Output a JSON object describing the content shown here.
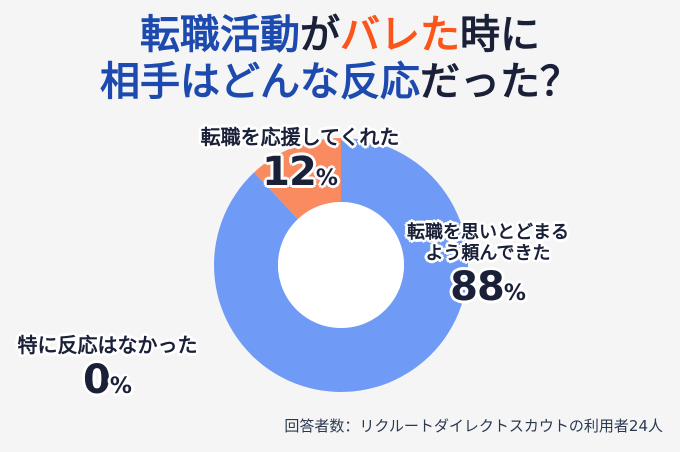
{
  "page": {
    "background": "#f5f5f6"
  },
  "title": {
    "line1": [
      {
        "text": "転職活動",
        "color": "#1d4aae"
      },
      {
        "text": "が",
        "color": "#1a2038"
      },
      {
        "text": "バレた",
        "color": "#fb551b"
      },
      {
        "text": "時に",
        "color": "#1a2038"
      }
    ],
    "line2": [
      {
        "text": "相手はどんな反応",
        "color": "#1d4aae"
      },
      {
        "text": "だった？",
        "color": "#1a2038"
      }
    ]
  },
  "chart_data": {
    "type": "pie",
    "subtype": "donut",
    "title": "転職活動がバレた時に相手はどんな反応だった？",
    "unit": "%",
    "start_angle_deg": 0,
    "direction": "clockwise",
    "segments": [
      {
        "label": "転職を思いとどまるよう頼んできた",
        "value": 88,
        "color": "#6f9bf6"
      },
      {
        "label": "転職を応援してくれた",
        "value": 12,
        "color": "#fa8a60"
      },
      {
        "label": "特に反応はなかった",
        "value": 0,
        "color": null
      }
    ],
    "hole_color": "#ffffff",
    "note": "回答者数：リクルートダイレクトスカウトの利用者24人"
  },
  "labels": {
    "top": {
      "text": "転職を応援してくれた",
      "value": 12,
      "unit": "%"
    },
    "right": {
      "line1": "転職を思いとどまる",
      "line2": "よう頼んできた",
      "value": 88,
      "unit": "%"
    },
    "left": {
      "text": "特に反応はなかった",
      "value": 0,
      "unit": "%"
    }
  },
  "footer": {
    "text": "回答者数：リクルートダイレクトスカウトの利用者24人"
  }
}
